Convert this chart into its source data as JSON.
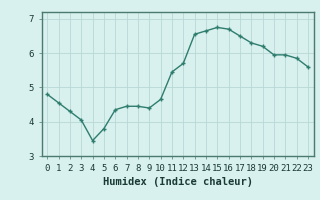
{
  "x": [
    0,
    1,
    2,
    3,
    4,
    5,
    6,
    7,
    8,
    9,
    10,
    11,
    12,
    13,
    14,
    15,
    16,
    17,
    18,
    19,
    20,
    21,
    22,
    23
  ],
  "y": [
    4.8,
    4.55,
    4.3,
    4.05,
    3.45,
    3.8,
    4.35,
    4.45,
    4.45,
    4.4,
    4.65,
    5.45,
    5.7,
    6.55,
    6.65,
    6.75,
    6.7,
    6.5,
    6.3,
    6.2,
    5.95,
    5.95,
    5.85,
    5.6
  ],
  "line_color": "#2e7d6e",
  "marker": "+",
  "marker_color": "#2e7d6e",
  "bg_color": "#d8f0ee",
  "grid_color": "#b8d8d4",
  "xlabel": "Humidex (Indice chaleur)",
  "xlim": [
    -0.5,
    23.5
  ],
  "ylim": [
    3.0,
    7.2
  ],
  "yticks": [
    3,
    4,
    5,
    6,
    7
  ],
  "xtick_labels": [
    "0",
    "1",
    "2",
    "3",
    "4",
    "5",
    "6",
    "7",
    "8",
    "9",
    "10",
    "11",
    "12",
    "13",
    "14",
    "15",
    "16",
    "17",
    "18",
    "19",
    "20",
    "21",
    "22",
    "23"
  ],
  "xlabel_fontsize": 7.5,
  "tick_fontsize": 6.5,
  "linewidth": 1.0,
  "markersize": 3.5,
  "spine_color": "#4a7a70"
}
